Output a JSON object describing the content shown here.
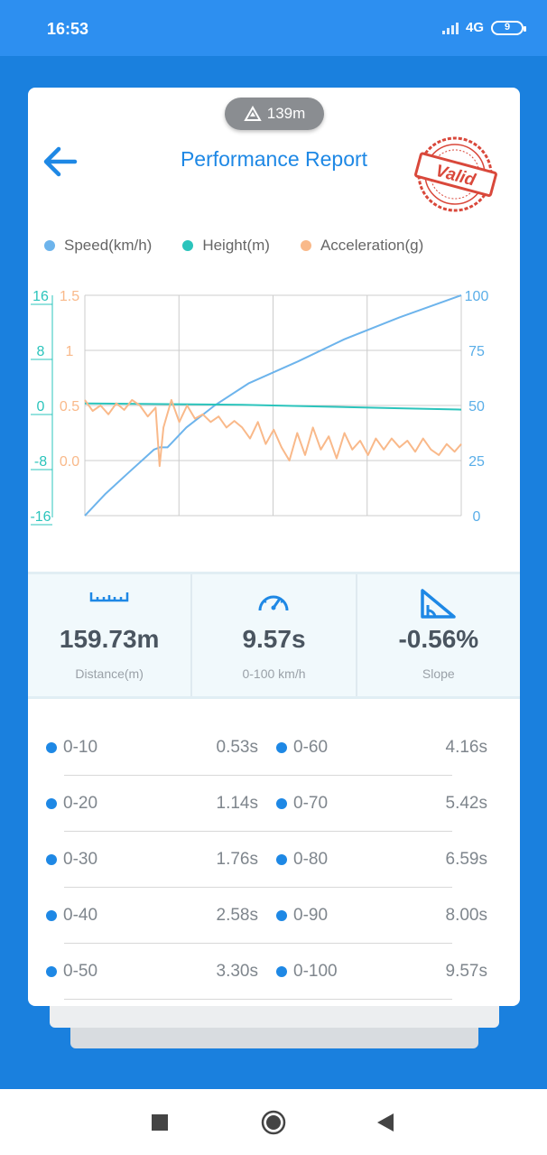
{
  "status_bar": {
    "time": "16:53",
    "network": "4G",
    "battery": "9"
  },
  "header": {
    "elevation": "139m",
    "title": "Performance Report",
    "stamp": "Valid"
  },
  "legend": [
    {
      "label": "Speed(km/h)",
      "color": "#6db4ec"
    },
    {
      "label": "Height(m)",
      "color": "#2bc4bc"
    },
    {
      "label": "Acceleration(g)",
      "color": "#f9b98a"
    }
  ],
  "chart_data": {
    "type": "line",
    "axes": {
      "height_ticks": [
        "16",
        "8",
        "0",
        "-8",
        "-16"
      ],
      "height_range": [
        -16,
        16
      ],
      "acceleration_ticks": [
        "1.5",
        "1",
        "0.5",
        "0.0"
      ],
      "acceleration_range": [
        -0.5,
        1.5
      ],
      "speed_ticks": [
        "100",
        "75",
        "50",
        "25",
        "0"
      ],
      "speed_range": [
        0,
        100
      ],
      "x_range_s": [
        0,
        9.57
      ],
      "grid": true
    },
    "series": [
      {
        "name": "Speed(km/h)",
        "axis": "right",
        "color": "#6db4ec",
        "x": [
          0,
          0.53,
          1.14,
          1.76,
          1.9,
          2.1,
          2.58,
          3.3,
          4.16,
          5.42,
          6.59,
          8.0,
          9.57
        ],
        "y": [
          0,
          10,
          20,
          30,
          31,
          31,
          40,
          50,
          60,
          70,
          80,
          90,
          100
        ]
      },
      {
        "name": "Height(m)",
        "axis": "left",
        "color": "#2bc4bc",
        "x": [
          0,
          4,
          8,
          9.57
        ],
        "y": [
          0.3,
          0.1,
          -0.4,
          -0.6
        ]
      },
      {
        "name": "Acceleration(g)",
        "axis": "left2",
        "color": "#f9b98a",
        "x": [
          0,
          0.2,
          0.4,
          0.6,
          0.8,
          1.0,
          1.2,
          1.4,
          1.6,
          1.8,
          1.9,
          2.0,
          2.2,
          2.4,
          2.6,
          2.8,
          3.0,
          3.2,
          3.4,
          3.6,
          3.8,
          4.0,
          4.2,
          4.4,
          4.6,
          4.8,
          5.0,
          5.2,
          5.4,
          5.6,
          5.8,
          6.0,
          6.2,
          6.4,
          6.6,
          6.8,
          7.0,
          7.2,
          7.4,
          7.6,
          7.8,
          8.0,
          8.2,
          8.4,
          8.6,
          8.8,
          9.0,
          9.2,
          9.4,
          9.57
        ],
        "y": [
          0.55,
          0.45,
          0.5,
          0.42,
          0.52,
          0.46,
          0.55,
          0.5,
          0.4,
          0.48,
          -0.05,
          0.3,
          0.55,
          0.35,
          0.5,
          0.38,
          0.42,
          0.35,
          0.4,
          0.3,
          0.36,
          0.3,
          0.2,
          0.35,
          0.15,
          0.28,
          0.12,
          0.0,
          0.25,
          0.05,
          0.3,
          0.1,
          0.22,
          0.02,
          0.25,
          0.1,
          0.18,
          0.05,
          0.2,
          0.1,
          0.2,
          0.12,
          0.18,
          0.08,
          0.2,
          0.1,
          0.05,
          0.15,
          0.08,
          0.15
        ]
      }
    ]
  },
  "stats": [
    {
      "icon": "ruler-icon",
      "value": "159.73m",
      "label": "Distance(m)"
    },
    {
      "icon": "speedometer-icon",
      "value": "9.57s",
      "label": "0-100 km/h"
    },
    {
      "icon": "slope-icon",
      "value": "-0.56%",
      "label": "Slope"
    }
  ],
  "splits": [
    {
      "left_range": "0-10",
      "left_time": "0.53s",
      "right_range": "0-60",
      "right_time": "4.16s"
    },
    {
      "left_range": "0-20",
      "left_time": "1.14s",
      "right_range": "0-70",
      "right_time": "5.42s"
    },
    {
      "left_range": "0-30",
      "left_time": "1.76s",
      "right_range": "0-80",
      "right_time": "6.59s"
    },
    {
      "left_range": "0-40",
      "left_time": "2.58s",
      "right_range": "0-90",
      "right_time": "8.00s"
    },
    {
      "left_range": "0-50",
      "left_time": "3.30s",
      "right_range": "0-100",
      "right_time": "9.57s"
    }
  ],
  "nav": {
    "recent": "square-icon",
    "home": "circle-icon",
    "back": "triangle-back-icon"
  }
}
